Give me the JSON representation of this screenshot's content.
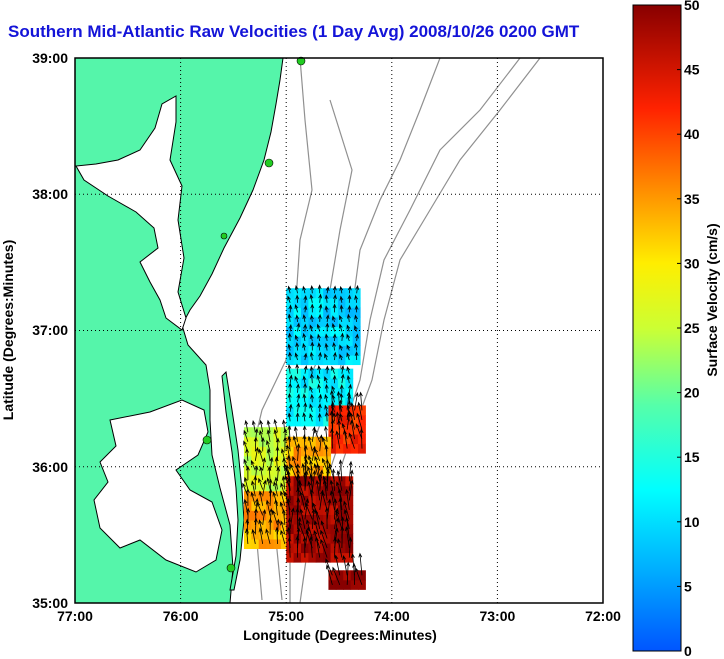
{
  "title": "Southern Mid-Atlantic Raw Velocities (1 Day Avg) 2008/10/26 0200 GMT",
  "map": {
    "xlabel": "Longitude (Degrees:Minutes)",
    "ylabel": "Latitude (Degrees:Minutes)",
    "x_ticks": [
      "77:00",
      "76:00",
      "75:00",
      "74:00",
      "73:00",
      "72:00"
    ],
    "y_ticks": [
      "39:00",
      "38:00",
      "37:00",
      "36:00",
      "35:00"
    ],
    "lon_range": [
      -77.0,
      -72.0
    ],
    "lat_range": [
      35.0,
      39.0
    ],
    "grid": true,
    "land_color": "#55f5aa",
    "water_color": "#ffffff",
    "coast_color": "#000000",
    "bathymetry_color": "#909090",
    "station_color": "#22cc22"
  },
  "colorbar": {
    "label": "Surface Velocity (cm/s)",
    "ticks": [
      "0",
      "5",
      "10",
      "15",
      "20",
      "25",
      "30",
      "35",
      "40",
      "45",
      "50"
    ],
    "range": [
      0,
      50
    ],
    "colormap": "jet"
  },
  "chart_data": {
    "type": "heatmap",
    "title": "Southern Mid-Atlantic Raw Velocities (1 Day Avg) 2008/10/26 0200 GMT",
    "xlabel": "Longitude (Degrees:Minutes)",
    "ylabel": "Latitude (Degrees:Minutes)",
    "units": "cm/s",
    "xlim": [
      -77.0,
      -72.0
    ],
    "ylim": [
      35.0,
      39.0
    ],
    "regions": [
      {
        "lon_min": -75.0,
        "lon_max": -74.3,
        "lat_min": 36.75,
        "lat_max": 37.3,
        "speed": 10
      },
      {
        "lon_min": -75.0,
        "lon_max": -74.4,
        "lat_min": 36.3,
        "lat_max": 36.7,
        "speed": 12
      },
      {
        "lon_min": -74.6,
        "lon_max": -74.25,
        "lat_min": 36.1,
        "lat_max": 36.45,
        "speed": 42
      },
      {
        "lon_min": -75.4,
        "lon_max": -75.0,
        "lat_min": 35.8,
        "lat_max": 36.25,
        "speed": 26
      },
      {
        "lon_min": -75.0,
        "lon_max": -74.6,
        "lat_min": 35.8,
        "lat_max": 36.2,
        "speed": 34
      },
      {
        "lon_min": -75.4,
        "lon_max": -75.0,
        "lat_min": 35.4,
        "lat_max": 35.8,
        "speed": 34
      },
      {
        "lon_min": -75.0,
        "lon_max": -74.4,
        "lat_min": 35.3,
        "lat_max": 35.9,
        "speed": 48
      },
      {
        "lon_min": -74.6,
        "lon_max": -74.3,
        "lat_min": 35.1,
        "lat_max": 35.2,
        "speed": 50
      }
    ]
  }
}
